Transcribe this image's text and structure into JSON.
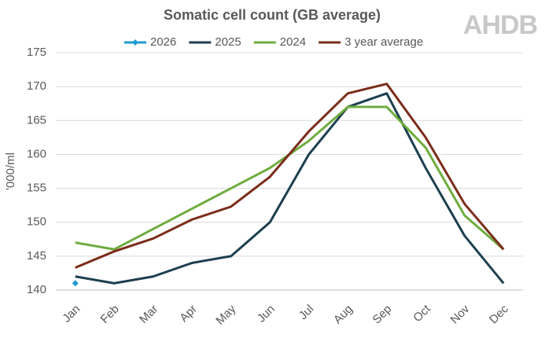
{
  "logo": "AHDB",
  "chart_data": {
    "type": "line",
    "title": "Somatic cell count (GB average)",
    "y_label": "'000/ml",
    "categories": [
      "Jan",
      "Feb",
      "Mar",
      "Apr",
      "May",
      "Jun",
      "Jul",
      "Aug",
      "Sep",
      "Oct",
      "Nov",
      "Dec"
    ],
    "series": [
      {
        "name": "2026",
        "color": "#1f9bd1",
        "marker": "diamond",
        "values": [
          141,
          null,
          null,
          null,
          null,
          null,
          null,
          null,
          null,
          null,
          null,
          null
        ]
      },
      {
        "name": "2025",
        "color": "#1d3f4f",
        "values": [
          142,
          141,
          142,
          144,
          145,
          150,
          160,
          167,
          169,
          158,
          148,
          141
        ]
      },
      {
        "name": "2024",
        "color": "#6fac3f",
        "values": [
          147,
          146,
          149,
          152,
          155,
          158,
          162,
          167,
          167,
          161,
          151,
          146
        ]
      },
      {
        "name": "3 year average",
        "color": "#7b2d1a",
        "values": [
          143.3,
          145.7,
          147.6,
          150.4,
          152.3,
          156.7,
          163.4,
          169,
          170.4,
          162.5,
          152.7,
          146
        ]
      }
    ],
    "ylim": [
      140,
      175
    ],
    "yticks": [
      140,
      145,
      150,
      155,
      160,
      165,
      170,
      175
    ],
    "grid": true,
    "legend": "top"
  }
}
